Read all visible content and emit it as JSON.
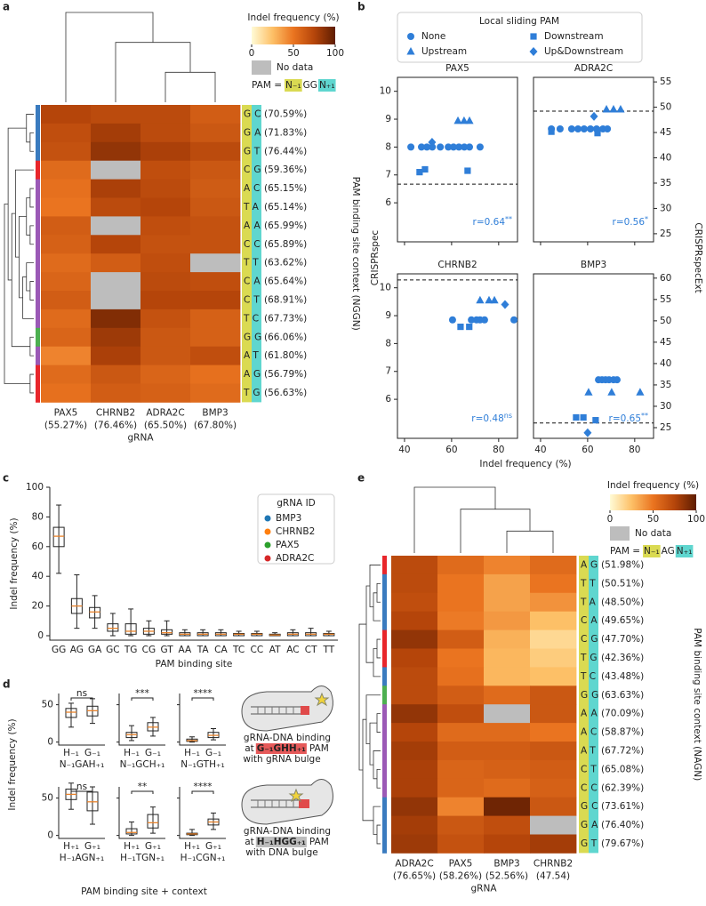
{
  "chart_data": [
    {
      "panel": "a",
      "type": "heatmap",
      "columns": [
        "PAX5",
        "CHRNB2",
        "ADRA2C",
        "BMP3"
      ],
      "column_labels": [
        "(55.27%)",
        "(76.46%)",
        "(65.50%)",
        "(67.80%)"
      ],
      "rows": [
        "GC",
        "GA",
        "GT",
        "CG",
        "AC",
        "TA",
        "AA",
        "CC",
        "TT",
        "CA",
        "CT",
        "TC",
        "GG",
        "AT",
        "AG",
        "TG"
      ],
      "row_labels": [
        "(70.59%)",
        "(71.83%)",
        "(76.44%)",
        "(59.36%)",
        "(65.15%)",
        "(65.14%)",
        "(65.99%)",
        "(65.89%)",
        "(63.62%)",
        "(65.64%)",
        "(68.91%)",
        "(67.73%)",
        "(66.06%)",
        "(61.80%)",
        "(56.79%)",
        "(56.63%)"
      ],
      "values": [
        [
          75,
          72,
          72,
          62
        ],
        [
          70,
          80,
          72,
          65
        ],
        [
          68,
          85,
          78,
          72
        ],
        [
          55,
          null,
          70,
          65
        ],
        [
          52,
          78,
          72,
          63
        ],
        [
          50,
          72,
          75,
          65
        ],
        [
          62,
          null,
          70,
          68
        ],
        [
          60,
          75,
          68,
          68
        ],
        [
          55,
          62,
          70,
          null
        ],
        [
          58,
          null,
          72,
          70
        ],
        [
          62,
          null,
          75,
          75
        ],
        [
          55,
          90,
          68,
          60
        ],
        [
          58,
          82,
          65,
          60
        ],
        [
          45,
          78,
          65,
          70
        ],
        [
          55,
          65,
          58,
          52
        ],
        [
          52,
          62,
          60,
          55
        ]
      ],
      "xlabel": "gRNA",
      "ylabel": "PAM binding site context (NGGN)",
      "colorbar_title": "Indel frequency (%)",
      "clim": [
        0,
        100
      ],
      "cticks": [
        0,
        50,
        100
      ],
      "colormap": [
        "#fffbd6",
        "#fdc067",
        "#ea7420",
        "#b5450a",
        "#5e1d02"
      ],
      "missing_label": "No data",
      "missing_color": "#bdbdbd",
      "pam_prefix": "PAM =",
      "pam": [
        "N₋₁",
        "GG",
        "N₊₁"
      ]
    },
    {
      "panel": "b",
      "type": "scatter",
      "legend_title": "Local sliding PAM",
      "color": "#2f7ed8",
      "series": [
        {
          "name": "None",
          "marker": "circle"
        },
        {
          "name": "Upstream",
          "marker": "triangle"
        },
        {
          "name": "Downstream",
          "marker": "square"
        },
        {
          "name": "Up&Downstream",
          "marker": "diamond"
        }
      ],
      "xlabel": "Indel frequency (%)",
      "ylabel": "CRISPRspec",
      "y2label": "CRISPRspecExt",
      "xlim": [
        37,
        88
      ],
      "xticks": [
        40,
        60,
        80
      ],
      "subplots": [
        {
          "title": "PAX5",
          "ylim": [
            4.6,
            10.5
          ],
          "yticks": [
            6,
            7,
            8,
            9,
            10
          ],
          "hline": 6.67,
          "r": "r=0.64",
          "sig": "**",
          "points": [
            {
              "x": [
                42.7,
                47.2,
                49.5,
                51.8,
                55.2,
                58.6,
                60.8,
                63.1,
                65.4,
                67.6,
                72.1
              ],
              "y": [
                8,
                8,
                8,
                8,
                8,
                8,
                8,
                8,
                8,
                8,
                8
              ]
            },
            {
              "x": [
                62.7,
                65.3,
                67.6
              ],
              "y": [
                8.94,
                8.94,
                8.94
              ]
            },
            {
              "x": [
                46.4,
                48.7,
                66.8
              ],
              "y": [
                7.1,
                7.2,
                7.15
              ]
            },
            {
              "x": [
                51.7
              ],
              "y": [
                8.17
              ]
            }
          ]
        },
        {
          "title": "ADRA2C",
          "ylim": [
            4.6,
            10.5
          ],
          "y2lim": [
            23.4,
            55.9
          ],
          "y2ticks": [
            25,
            30,
            35,
            40,
            45,
            50,
            55
          ],
          "hline": 9.29,
          "r": "r=0.56",
          "sig": "*",
          "points": [
            {
              "x": [
                44.6,
                48.3,
                53.2,
                55.9,
                58.5,
                61.2,
                63.8,
                66.5,
                68.4
              ],
              "y": [
                8.65,
                8.65,
                8.65,
                8.65,
                8.65,
                8.65,
                8.65,
                8.65,
                8.65
              ]
            },
            {
              "x": [
                68,
                71,
                74
              ],
              "y": [
                9.35,
                9.35,
                9.35
              ]
            },
            {
              "x": [
                44.6,
                64.2
              ],
              "y": [
                8.55,
                8.5
              ]
            },
            {
              "x": [
                62.7
              ],
              "y": [
                9.1
              ]
            }
          ]
        },
        {
          "title": "CHRNB2",
          "ylim": [
            4.6,
            10.5
          ],
          "yticks": [
            6,
            7,
            8,
            9,
            10
          ],
          "hline": 10.28,
          "r": "r=0.48",
          "sig": "ns",
          "points": [
            {
              "x": [
                60.4,
                68.4,
                70.6,
                72.1,
                74,
                86.5
              ],
              "y": [
                8.85,
                8.85,
                8.85,
                8.85,
                8.85,
                8.85
              ]
            },
            {
              "x": [
                72.1,
                75.9,
                78.2
              ],
              "y": [
                9.55,
                9.55,
                9.55
              ]
            },
            {
              "x": [
                63.8,
                67.5
              ],
              "y": [
                8.6,
                8.6
              ]
            },
            {
              "x": [
                82.7
              ],
              "y": [
                9.4
              ]
            }
          ]
        },
        {
          "title": "BMP3",
          "ylim": [
            4.6,
            10.5
          ],
          "y2lim": [
            22.5,
            61
          ],
          "y2ticks": [
            25,
            30,
            35,
            40,
            45,
            50,
            55,
            60
          ],
          "hline": 5.15,
          "r": "r=0.65",
          "sig": "**",
          "points": [
            {
              "x": [
                64.6,
                66.1,
                67.6,
                69.1,
                71,
                72.5
              ],
              "y": [
                6.7,
                6.7,
                6.7,
                6.7,
                6.7,
                6.7
              ]
            },
            {
              "x": [
                60.4,
                70.2,
                82.3
              ],
              "y": [
                6.25,
                6.25,
                6.25
              ]
            },
            {
              "x": [
                55.1,
                58.2,
                63.4
              ],
              "y": [
                5.35,
                5.35,
                5.25
              ]
            },
            {
              "x": [
                60
              ],
              "y": [
                4.8
              ]
            }
          ]
        }
      ]
    },
    {
      "panel": "c",
      "type": "box",
      "categories": [
        "GG",
        "AG",
        "GA",
        "GC",
        "TG",
        "CG",
        "GT",
        "AA",
        "TA",
        "CA",
        "TC",
        "CC",
        "AT",
        "AC",
        "CT",
        "TT"
      ],
      "boxes": [
        {
          "low": 42,
          "q1": 60,
          "median": 67,
          "q3": 73,
          "high": 88
        },
        {
          "low": 5,
          "q1": 15,
          "median": 20,
          "q3": 25,
          "high": 41
        },
        {
          "low": 5,
          "q1": 12,
          "median": 16,
          "q3": 19,
          "high": 27
        },
        {
          "low": 0,
          "q1": 3,
          "median": 5,
          "q3": 8,
          "high": 15
        },
        {
          "low": 0,
          "q1": 1,
          "median": 3,
          "q3": 8,
          "high": 18
        },
        {
          "low": 0,
          "q1": 1,
          "median": 3,
          "q3": 5,
          "high": 10
        },
        {
          "low": 0,
          "q1": 1,
          "median": 2,
          "q3": 4,
          "high": 10
        },
        {
          "low": 0,
          "q1": 0,
          "median": 1,
          "q3": 2,
          "high": 4
        },
        {
          "low": 0,
          "q1": 0,
          "median": 1,
          "q3": 2,
          "high": 4
        },
        {
          "low": 0,
          "q1": 0,
          "median": 1,
          "q3": 2,
          "high": 4
        },
        {
          "low": 0,
          "q1": 0,
          "median": 1,
          "q3": 1.5,
          "high": 3
        },
        {
          "low": 0,
          "q1": 0,
          "median": 1,
          "q3": 1.5,
          "high": 3
        },
        {
          "low": 0,
          "q1": 0,
          "median": 0.5,
          "q3": 1,
          "high": 2
        },
        {
          "low": 0,
          "q1": 0,
          "median": 1,
          "q3": 2,
          "high": 4
        },
        {
          "low": 0,
          "q1": 0,
          "median": 1,
          "q3": 2,
          "high": 5
        },
        {
          "low": 0,
          "q1": 0,
          "median": 1,
          "q3": 1.5,
          "high": 3
        }
      ],
      "ylim": [
        -3,
        100
      ],
      "yticks": [
        0,
        20,
        40,
        60,
        80,
        100
      ],
      "ylabel": "Indel frequency (%)",
      "xlabel": "PAM binding site",
      "legend_title": "gRNA ID",
      "series": [
        {
          "name": "BMP3",
          "color": "#1f77b4"
        },
        {
          "name": "CHRNB2",
          "color": "#ff7f0e"
        },
        {
          "name": "PAX5",
          "color": "#2ca02c"
        },
        {
          "name": "ADRA2C",
          "color": "#d62728"
        }
      ]
    },
    {
      "panel": "d",
      "type": "box",
      "ylim": [
        -4,
        65
      ],
      "yticks": [
        0,
        50
      ],
      "ylabel": "Indel frequency (%)",
      "xlabel": "PAM binding site + context",
      "subplots": [
        {
          "label": "N₋₁GAH₊₁",
          "categories": [
            "H₋₁",
            "G₋₁"
          ],
          "sig": "ns",
          "boxes": [
            {
              "low": 20,
              "q1": 33,
              "median": 40,
              "q3": 45,
              "high": 52
            },
            {
              "low": 25,
              "q1": 35,
              "median": 42,
              "q3": 48,
              "high": 58
            }
          ]
        },
        {
          "label": "N₋₁GCH₊₁",
          "categories": [
            "H₋₁",
            "G₋₁"
          ],
          "sig": "***",
          "boxes": [
            {
              "low": 2,
              "q1": 6,
              "median": 10,
              "q3": 13,
              "high": 22
            },
            {
              "low": 8,
              "q1": 15,
              "median": 20,
              "q3": 26,
              "high": 33
            }
          ]
        },
        {
          "label": "N₋₁GTH₊₁",
          "categories": [
            "H₋₁",
            "G₋₁"
          ],
          "sig": "****",
          "boxes": [
            {
              "low": 0,
              "q1": 1,
              "median": 2,
              "q3": 4,
              "high": 7
            },
            {
              "low": 3,
              "q1": 6,
              "median": 9,
              "q3": 13,
              "high": 18
            }
          ]
        },
        {
          "label": "H₋₁AGN₊₁",
          "categories": [
            "H₊₁",
            "G₊₁"
          ],
          "sig": "ns",
          "boxes": [
            {
              "low": 35,
              "q1": 48,
              "median": 55,
              "q3": 62,
              "high": 70
            },
            {
              "low": 15,
              "q1": 33,
              "median": 45,
              "q3": 58,
              "high": 65
            }
          ]
        },
        {
          "label": "H₋₁TGN₊₁",
          "categories": [
            "H₊₁",
            "G₊₁"
          ],
          "sig": "**",
          "boxes": [
            {
              "low": 0,
              "q1": 2,
              "median": 4,
              "q3": 9,
              "high": 18
            },
            {
              "low": 3,
              "q1": 10,
              "median": 17,
              "q3": 28,
              "high": 38
            }
          ]
        },
        {
          "label": "H₋₁CGN₊₁",
          "categories": [
            "H₊₁",
            "G₊₁"
          ],
          "sig": "****",
          "boxes": [
            {
              "low": 0,
              "q1": 1,
              "median": 2,
              "q3": 3,
              "high": 8
            },
            {
              "low": 8,
              "q1": 14,
              "median": 18,
              "q3": 22,
              "high": 30
            }
          ]
        }
      ],
      "diagrams": [
        {
          "title": "gRNA-DNA binding",
          "pre": "at",
          "pam": "G₋₁GHH₊₁",
          "post": "PAM",
          "note": "with gRNA bulge"
        },
        {
          "title": "gRNA-DNA binding",
          "pre": "at",
          "pam": "H₋₁HGG₊₁",
          "post": "PAM",
          "note": "with DNA bulge"
        }
      ]
    },
    {
      "panel": "e",
      "type": "heatmap",
      "columns": [
        "ADRA2C",
        "PAX5",
        "BMP3",
        "CHRNB2"
      ],
      "column_labels": [
        "(76.65%)",
        "(58.26%)",
        "(52.56%)",
        "(47.54)"
      ],
      "rows": [
        "AG",
        "TT",
        "TA",
        "CA",
        "CG",
        "TG",
        "TC",
        "GG",
        "AA",
        "AC",
        "AT",
        "CT",
        "CC",
        "GC",
        "GA",
        "GT"
      ],
      "row_labels": [
        "(51.98%)",
        "(50.51%)",
        "(48.50%)",
        "(49.65%)",
        "(47.70%)",
        "(42.36%)",
        "(43.48%)",
        "(63.63%)",
        "(70.09%)",
        "(58.87%)",
        "(67.72%)",
        "(65.08%)",
        "(62.39%)",
        "(73.61%)",
        "(76.40%)",
        "(79.67%)"
      ],
      "values": [
        [
          72,
          55,
          45,
          55
        ],
        [
          72,
          50,
          35,
          50
        ],
        [
          70,
          50,
          35,
          40
        ],
        [
          75,
          48,
          38,
          25
        ],
        [
          85,
          62,
          30,
          15
        ],
        [
          75,
          50,
          28,
          20
        ],
        [
          72,
          52,
          28,
          25
        ],
        [
          72,
          62,
          55,
          65
        ],
        [
          85,
          70,
          null,
          65
        ],
        [
          75,
          55,
          55,
          50
        ],
        [
          80,
          62,
          62,
          65
        ],
        [
          78,
          58,
          60,
          62
        ],
        [
          78,
          58,
          55,
          60
        ],
        [
          85,
          45,
          95,
          65
        ],
        [
          80,
          65,
          70,
          null
        ],
        [
          82,
          68,
          75,
          80
        ]
      ],
      "xlabel": "gRNA",
      "ylabel": "PAM binding site context (NAGN)",
      "colorbar_title": "Indel frequency (%)",
      "clim": [
        0,
        100
      ],
      "cticks": [
        0,
        50,
        100
      ],
      "colormap": [
        "#fffbd6",
        "#fdc067",
        "#ea7420",
        "#b5450a",
        "#5e1d02"
      ],
      "missing_label": "No data",
      "missing_color": "#bdbdbd",
      "pam_prefix": "PAM =",
      "pam": [
        "N₋₁",
        "AG",
        "N₊₁"
      ]
    }
  ]
}
